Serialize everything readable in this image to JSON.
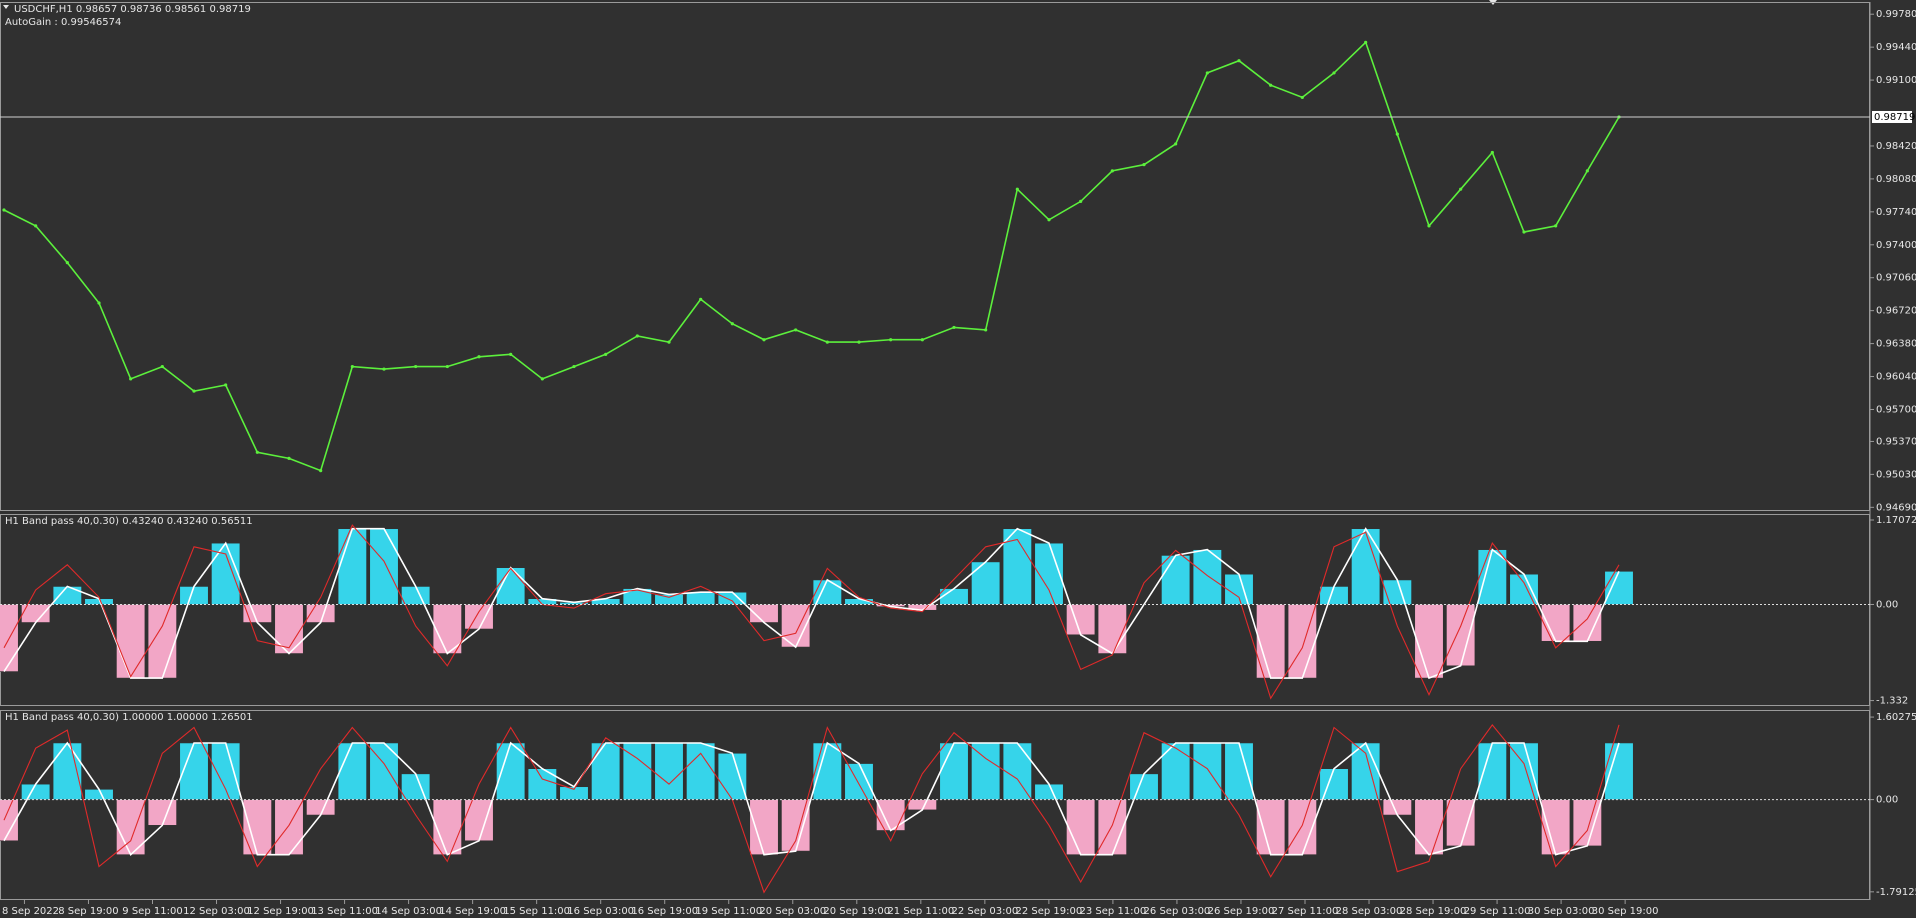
{
  "chart_data": [
    {
      "type": "line",
      "title": "USDCHF,H1  0.98657 0.98736 0.98561 0.98719",
      "subtitle": "AutoGain : 0.99546574",
      "color": "#5cf03c",
      "values": [
        0.97759,
        0.97595,
        0.97216,
        0.96799,
        0.96016,
        0.96143,
        0.9589,
        0.95953,
        0.95258,
        0.95195,
        0.95069,
        0.96143,
        0.96117,
        0.96143,
        0.96143,
        0.96244,
        0.96269,
        0.96016,
        0.96143,
        0.96269,
        0.96458,
        0.96395,
        0.96837,
        0.96585,
        0.9642,
        0.96521,
        0.96395,
        0.96395,
        0.9642,
        0.9642,
        0.96547,
        0.96521,
        0.97974,
        0.97658,
        0.97848,
        0.98163,
        0.98227,
        0.98441,
        0.99174,
        0.993,
        0.99047,
        0.98921,
        0.99174,
        0.9949,
        0.98542,
        0.97595,
        0.97974,
        0.98353,
        0.97532,
        0.97595,
        0.98163,
        0.98719
      ],
      "price_line": 0.98719,
      "ylim": [
        0.94652,
        0.99906
      ],
      "yticks": [
        {
          "value": 0.9978,
          "label": "0.99780"
        },
        {
          "value": 0.9944,
          "label": "0.99440"
        },
        {
          "value": 0.991,
          "label": "0.99100"
        },
        {
          "value": 0.9842,
          "label": "0.98420"
        },
        {
          "value": 0.9808,
          "label": "0.98080"
        },
        {
          "value": 0.9774,
          "label": "0.97740"
        },
        {
          "value": 0.974,
          "label": "0.97400"
        },
        {
          "value": 0.9706,
          "label": "0.97060"
        },
        {
          "value": 0.9672,
          "label": "0.96720"
        },
        {
          "value": 0.9638,
          "label": "0.96380"
        },
        {
          "value": 0.9604,
          "label": "0.96040"
        },
        {
          "value": 0.957,
          "label": "0.95700"
        },
        {
          "value": 0.9537,
          "label": "0.95370"
        },
        {
          "value": 0.9503,
          "label": "0.95030"
        },
        {
          "value": 0.9469,
          "label": "0.94690"
        }
      ]
    },
    {
      "type": "bar",
      "title": "H1 Band pass 40,0.30) 0.43240 0.43240 0.56511",
      "color_positive": "#36d4ea",
      "color_negative": "#f2a6c6",
      "outline_color": "#ffffff",
      "line_color": "#e02a2a",
      "values": [
        -0.93,
        -0.25,
        0.25,
        0.08,
        -1.02,
        -1.02,
        0.25,
        0.85,
        -0.25,
        -0.68,
        -0.25,
        1.05,
        1.05,
        0.25,
        -0.68,
        -0.34,
        0.51,
        0.08,
        0.03,
        0.08,
        0.22,
        0.14,
        0.17,
        0.17,
        -0.25,
        -0.59,
        0.34,
        0.08,
        -0.03,
        -0.08,
        0.22,
        0.59,
        1.05,
        0.85,
        -0.42,
        -0.68,
        0,
        0.68,
        0.76,
        0.42,
        -1.02,
        -1.02,
        0.25,
        1.05,
        0.34,
        -1.02,
        -0.85,
        0.76,
        0.42,
        -0.51,
        -0.51,
        0.46
      ],
      "line_values": [
        -0.6,
        0.2,
        0.55,
        0.1,
        -1.0,
        -0.3,
        0.8,
        0.7,
        -0.5,
        -0.6,
        0.1,
        1.1,
        0.6,
        -0.3,
        -0.85,
        -0.1,
        0.5,
        0.0,
        -0.05,
        0.15,
        0.2,
        0.1,
        0.25,
        0.05,
        -0.5,
        -0.4,
        0.5,
        0.1,
        -0.05,
        -0.1,
        0.35,
        0.8,
        0.9,
        0.2,
        -0.9,
        -0.7,
        0.3,
        0.75,
        0.4,
        0.1,
        -1.3,
        -0.6,
        0.8,
        1.0,
        -0.3,
        -1.25,
        -0.3,
        0.85,
        0.3,
        -0.6,
        -0.2,
        0.55
      ],
      "zero_line": true,
      "ylim": [
        -1.407,
        1.254
      ],
      "yticks": [
        1.17072,
        {
          "value": 0,
          "label": "0.00"
        },
        -1.332
      ]
    },
    {
      "type": "bar",
      "title": "H1 Band pass 40,0.30) 1.00000 1.00000 1.26501",
      "color_positive": "#36d4ea",
      "color_negative": "#f2a6c6",
      "outline_color": "#ffffff",
      "line_color": "#e02a2a",
      "values": [
        -0.8,
        0.3,
        1.1,
        0.2,
        -1.07,
        -0.5,
        1.1,
        1.1,
        -1.07,
        -1.07,
        -0.3,
        1.1,
        1.1,
        0.5,
        -1.07,
        -0.8,
        1.1,
        0.6,
        0.25,
        1.1,
        1.1,
        1.1,
        1.1,
        0.9,
        -1.07,
        -1.0,
        1.1,
        0.7,
        -0.6,
        -0.2,
        1.1,
        1.1,
        1.1,
        0.3,
        -1.07,
        -1.07,
        0.5,
        1.1,
        1.1,
        1.1,
        -1.07,
        -1.07,
        0.6,
        1.1,
        -0.3,
        -1.07,
        -0.9,
        1.1,
        1.1,
        -1.07,
        -0.9,
        1.1
      ],
      "line_values": [
        -0.4,
        1.0,
        1.35,
        -1.3,
        -0.8,
        0.9,
        1.4,
        0.2,
        -1.3,
        -0.5,
        0.6,
        1.4,
        0.7,
        -0.3,
        -1.2,
        0.3,
        1.4,
        0.4,
        0.2,
        1.2,
        0.8,
        0.3,
        0.9,
        0.0,
        -1.8,
        -0.8,
        1.4,
        0.3,
        -0.8,
        0.5,
        1.3,
        0.8,
        0.4,
        -0.5,
        -1.6,
        -0.5,
        1.3,
        1.0,
        0.6,
        -0.3,
        -1.5,
        -0.5,
        1.4,
        0.9,
        -1.4,
        -1.2,
        0.6,
        1.45,
        0.7,
        -1.3,
        -0.6,
        1.45
      ],
      "zero_line": true,
      "ylim": [
        -1.95,
        1.74
      ],
      "yticks": [
        1.60275,
        {
          "value": 0,
          "label": "0.00"
        },
        -1.79125
      ],
      "x_labels": [
        "8 Sep 2022",
        "8 Sep 19:00",
        "9 Sep 11:00",
        "12 Sep 03:00",
        "12 Sep 19:00",
        "13 Sep 11:00",
        "14 Sep 03:00",
        "14 Sep 19:00",
        "15 Sep 11:00",
        "16 Sep 03:00",
        "16 Sep 19:00",
        "19 Sep 11:00",
        "20 Sep 03:00",
        "20 Sep 19:00",
        "21 Sep 11:00",
        "22 Sep 03:00",
        "22 Sep 19:00",
        "23 Sep 11:00",
        "26 Sep 03:00",
        "26 Sep 19:00",
        "27 Sep 11:00",
        "28 Sep 03:00",
        "28 Sep 19:00",
        "29 Sep 11:00",
        "30 Sep 03:00",
        "30 Sep 19:00"
      ]
    }
  ]
}
